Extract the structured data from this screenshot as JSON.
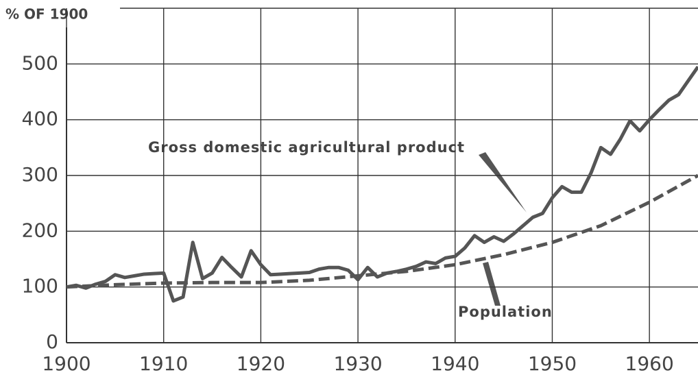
{
  "chart_data": {
    "type": "line",
    "ylabel": "% OF 1900",
    "xlim": [
      1900,
      1965
    ],
    "xticks": [
      1900,
      1910,
      1920,
      1930,
      1940,
      1950,
      1960
    ],
    "ylim": [
      0,
      600
    ],
    "yticks": [
      0,
      100,
      200,
      300,
      400,
      500
    ],
    "grid": true,
    "annotations": [
      "Gross domestic agricultural product",
      "Population"
    ],
    "series": [
      {
        "name": "Gross domestic agricultural product",
        "color": "#555555",
        "style": "solid",
        "x": [
          1900,
          1901,
          1902,
          1903,
          1904,
          1905,
          1906,
          1907,
          1908,
          1909,
          1910,
          1911,
          1912,
          1913,
          1914,
          1915,
          1916,
          1917,
          1918,
          1919,
          1920,
          1921,
          1922,
          1923,
          1924,
          1925,
          1926,
          1927,
          1928,
          1929,
          1930,
          1931,
          1932,
          1933,
          1934,
          1935,
          1936,
          1937,
          1938,
          1939,
          1940,
          1941,
          1942,
          1943,
          1944,
          1945,
          1946,
          1947,
          1948,
          1949,
          1950,
          1951,
          1952,
          1953,
          1954,
          1955,
          1956,
          1957,
          1958,
          1959,
          1960,
          1961,
          1962,
          1963,
          1964,
          1965
        ],
        "values": [
          100,
          103,
          98,
          105,
          110,
          122,
          117,
          120,
          123,
          124,
          125,
          75,
          82,
          180,
          115,
          125,
          153,
          135,
          118,
          165,
          140,
          122,
          123,
          124,
          125,
          126,
          132,
          135,
          135,
          130,
          113,
          135,
          118,
          125,
          128,
          132,
          137,
          145,
          142,
          152,
          155,
          170,
          192,
          180,
          190,
          182,
          195,
          210,
          225,
          232,
          260,
          280,
          270,
          270,
          305,
          350,
          338,
          365,
          398,
          380,
          400,
          418,
          435,
          445,
          470,
          495
        ]
      },
      {
        "name": "Population",
        "color": "#555555",
        "style": "dashed",
        "x": [
          1900,
          1905,
          1910,
          1915,
          1920,
          1925,
          1930,
          1935,
          1940,
          1945,
          1950,
          1955,
          1960,
          1965
        ],
        "values": [
          100,
          104,
          107,
          108,
          108,
          112,
          120,
          128,
          140,
          158,
          180,
          210,
          252,
          300
        ]
      }
    ]
  }
}
